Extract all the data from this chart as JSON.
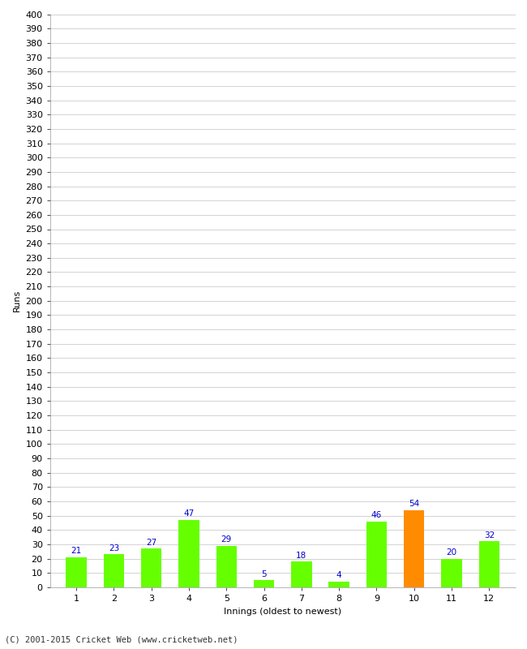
{
  "xlabel": "Innings (oldest to newest)",
  "ylabel": "Runs",
  "categories": [
    "1",
    "2",
    "3",
    "4",
    "5",
    "6",
    "7",
    "8",
    "9",
    "10",
    "11",
    "12"
  ],
  "values": [
    21,
    23,
    27,
    47,
    29,
    5,
    18,
    4,
    46,
    54,
    20,
    32
  ],
  "bar_colors": [
    "#66ff00",
    "#66ff00",
    "#66ff00",
    "#66ff00",
    "#66ff00",
    "#66ff00",
    "#66ff00",
    "#66ff00",
    "#66ff00",
    "#ff8c00",
    "#66ff00",
    "#66ff00"
  ],
  "ylim": [
    0,
    400
  ],
  "yticks": [
    0,
    10,
    20,
    30,
    40,
    50,
    60,
    70,
    80,
    90,
    100,
    110,
    120,
    130,
    140,
    150,
    160,
    170,
    180,
    190,
    200,
    210,
    220,
    230,
    240,
    250,
    260,
    270,
    280,
    290,
    300,
    310,
    320,
    330,
    340,
    350,
    360,
    370,
    380,
    390,
    400
  ],
  "label_color": "#0000cc",
  "grid_color": "#cccccc",
  "background_color": "#ffffff",
  "footer": "(C) 2001-2015 Cricket Web (www.cricketweb.net)",
  "label_fontsize": 7.5,
  "axis_fontsize": 8,
  "ylabel_fontsize": 8,
  "xlabel_fontsize": 8,
  "footer_fontsize": 7.5,
  "bar_width": 0.55
}
